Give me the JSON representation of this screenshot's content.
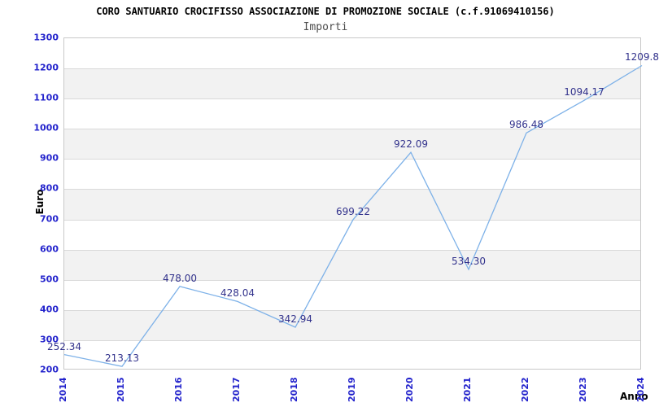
{
  "chart_data": {
    "type": "line",
    "title": "CORO SANTUARIO CROCIFISSO ASSOCIAZIONE DI PROMOZIONE SOCIALE (c.f.91069410156)",
    "subtitle": "Importi",
    "xlabel": "Anno",
    "ylabel": "Euro",
    "categories": [
      "2014",
      "2015",
      "2016",
      "2017",
      "2018",
      "2019",
      "2020",
      "2021",
      "2022",
      "2023",
      "2024"
    ],
    "values": [
      252.34,
      213.13,
      478.0,
      428.04,
      342.94,
      699.22,
      922.09,
      534.3,
      986.48,
      1094.17,
      1209.8
    ],
    "value_labels": [
      "252.34",
      "213.13",
      "478.00",
      "428.04",
      "342.94",
      "699.22",
      "922.09",
      "534.30",
      "986.48",
      "1094.17",
      "1209.8"
    ],
    "ylim": [
      200,
      1300
    ],
    "ytick_step": 100,
    "yticks": [
      200,
      300,
      400,
      500,
      600,
      700,
      800,
      900,
      1000,
      1100,
      1200,
      1300
    ],
    "grid": "horizontal-bands",
    "legend": "none",
    "colors": {
      "line": "#7db1e8",
      "tick_label": "#2323cc",
      "value_label": "#32328c",
      "band": "#f2f2f2",
      "gridline": "#d9d9d9",
      "plot_border": "#c8c8c8",
      "title": "#000000",
      "subtitle": "#4d4d4d",
      "axis_title": "#000000",
      "background": "#ffffff"
    }
  }
}
